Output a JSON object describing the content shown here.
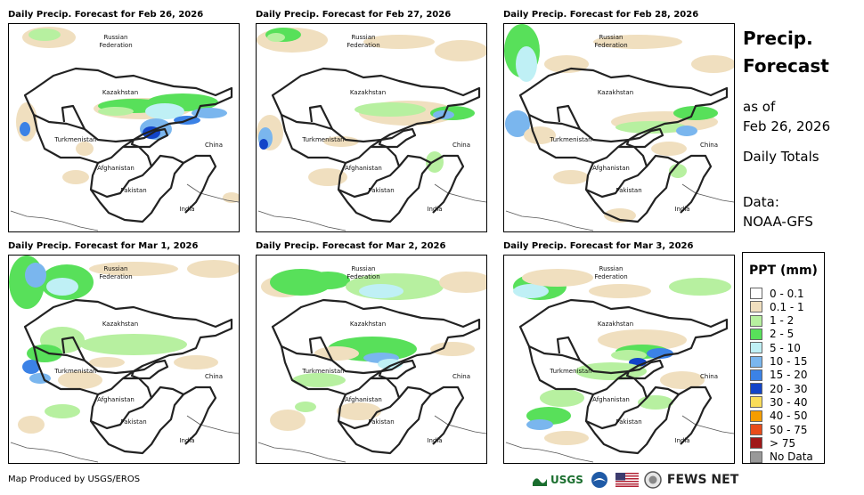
{
  "panels": [
    {
      "title": "Daily Precip. Forecast for Feb 26, 2026"
    },
    {
      "title": "Daily Precip. Forecast for Feb 27, 2026"
    },
    {
      "title": "Daily Precip. Forecast for Feb 28, 2026"
    },
    {
      "title": "Daily Precip. Forecast for Mar 1, 2026"
    },
    {
      "title": "Daily Precip. Forecast for Mar 2, 2026"
    },
    {
      "title": "Daily Precip. Forecast for Mar 3, 2026"
    }
  ],
  "map_labels": {
    "russia_1": "Russian",
    "russia_2": "Federation",
    "kazakhstan": "Kazakhstan",
    "turkmenistan": "Turkmenistan",
    "china": "China",
    "afghanistan": "Afghanistan",
    "pakistan": "Pakistan",
    "india": "India"
  },
  "side": {
    "title_line1": "Precip.",
    "title_line2": "Forecast",
    "asof_line1": "as of",
    "asof_line2": "Feb 26, 2026",
    "daily": "Daily Totals",
    "data_line1": "Data:",
    "data_line2": "NOAA-GFS"
  },
  "legend": {
    "title": "PPT (mm)",
    "items": [
      {
        "label": "0 - 0.1",
        "color": "#ffffff"
      },
      {
        "label": "0.1 - 1",
        "color": "#f0dfbf"
      },
      {
        "label": "1 - 2",
        "color": "#b7f0a0"
      },
      {
        "label": "2 - 5",
        "color": "#58e05a"
      },
      {
        "label": "5 - 10",
        "color": "#bff0f5"
      },
      {
        "label": "10 - 15",
        "color": "#7ab6ee"
      },
      {
        "label": "15 - 20",
        "color": "#3b82e6"
      },
      {
        "label": "20 - 30",
        "color": "#1244c8"
      },
      {
        "label": "30 - 40",
        "color": "#fadd5a"
      },
      {
        "label": "40 - 50",
        "color": "#f59d00"
      },
      {
        "label": "50 - 75",
        "color": "#e84c1a"
      },
      {
        "label": "> 75",
        "color": "#a01818"
      },
      {
        "label": "No Data",
        "color": "#999999"
      }
    ]
  },
  "footer": {
    "credit": "Map Produced by USGS/EROS",
    "usgs": "USGS",
    "fewsnet": "FEWS NET"
  }
}
